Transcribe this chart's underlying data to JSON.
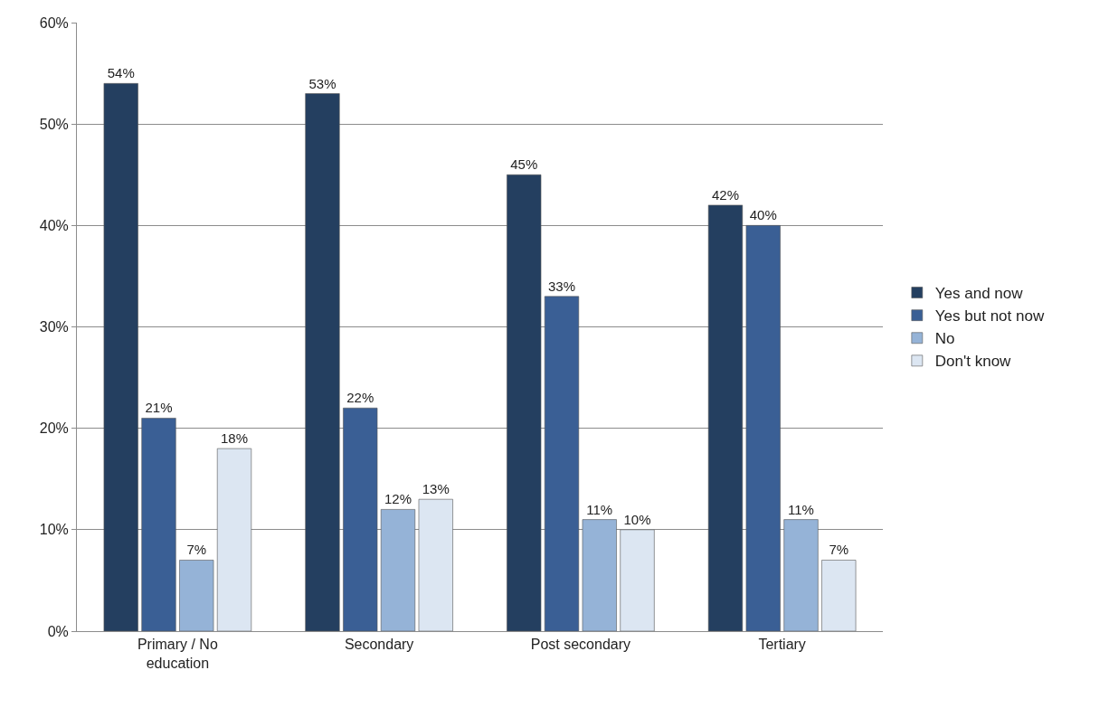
{
  "chart_data": {
    "type": "bar",
    "categories": [
      "Primary / No education",
      "Secondary",
      "Post secondary",
      "Tertiary"
    ],
    "series": [
      {
        "name": "Yes and now",
        "color": "#243f60",
        "values": [
          54,
          53,
          45,
          42
        ],
        "value_labels": [
          "54%",
          "53%",
          "45%",
          "42%"
        ]
      },
      {
        "name": "Yes but not now",
        "color": "#3a5f95",
        "values": [
          21,
          22,
          33,
          40
        ],
        "value_labels": [
          "21%",
          "22%",
          "33%",
          "40%"
        ]
      },
      {
        "name": "No",
        "color": "#95b3d7",
        "values": [
          7,
          12,
          11,
          11
        ],
        "value_labels": [
          "7%",
          "12%",
          "11%",
          "11%"
        ]
      },
      {
        "name": "Don't know",
        "color": "#dce6f2",
        "values": [
          18,
          13,
          10,
          7
        ],
        "value_labels": [
          "18%",
          "13%",
          "10%",
          "7%"
        ]
      }
    ],
    "ylim": [
      0,
      60
    ],
    "yticks": [
      {
        "value": 0,
        "label": "0%"
      },
      {
        "value": 10,
        "label": "10%"
      },
      {
        "value": 20,
        "label": "20%"
      },
      {
        "value": 30,
        "label": "30%"
      },
      {
        "value": 40,
        "label": "40%"
      },
      {
        "value": 50,
        "label": "50%"
      },
      {
        "value": 60,
        "label": "60%"
      }
    ],
    "grid": "y",
    "legend": "right"
  }
}
